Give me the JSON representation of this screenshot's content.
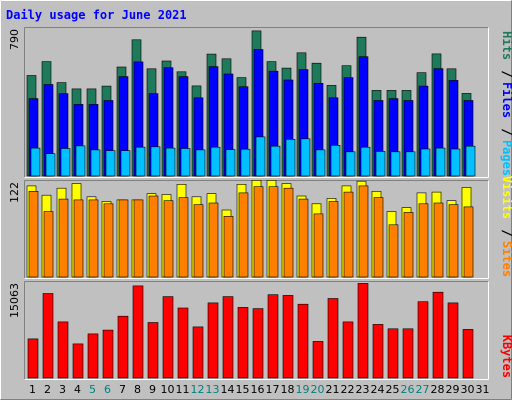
{
  "chart_data": {
    "type": "bar",
    "title": "Daily usage for June 2021",
    "days": [
      "1",
      "2",
      "3",
      "4",
      "5",
      "6",
      "7",
      "8",
      "9",
      "10",
      "11",
      "12",
      "13",
      "14",
      "15",
      "16",
      "17",
      "18",
      "19",
      "20",
      "21",
      "22",
      "23",
      "24",
      "25",
      "26",
      "27",
      "28",
      "29",
      "30",
      "31"
    ],
    "weekend_days": [
      "5",
      "6",
      "12",
      "13",
      "19",
      "20",
      "26",
      "27"
    ],
    "panels": [
      {
        "axis_max_label": "790",
        "ymax": 790,
        "right_labels": [
          "Pages",
          "Files",
          "Hits"
        ],
        "series": [
          {
            "name": "Hits",
            "color": "#1e7a5a",
            "values": [
              540,
              615,
              502,
              468,
              468,
              483,
              586,
              732,
              576,
              618,
              560,
              484,
              655,
              630,
              529,
              780,
              615,
              580,
              662,
              606,
              487,
              593,
              746,
              460,
              460,
              460,
              555,
              656,
              576,
              444,
              0
            ]
          },
          {
            "name": "Files",
            "color": "#0000ff",
            "values": [
              416,
              492,
              443,
              385,
              385,
              406,
              534,
              613,
              443,
              582,
              534,
              420,
              588,
              548,
              480,
              680,
              563,
              516,
              572,
              498,
              420,
              529,
              641,
              406,
              416,
              406,
              483,
              577,
              514,
              406,
              0
            ]
          },
          {
            "name": "Pages",
            "color": "#00c0ff",
            "values": [
              150,
              120,
              148,
              162,
              140,
              136,
              136,
              155,
              157,
              150,
              148,
              140,
              155,
              142,
              144,
              210,
              160,
              197,
              200,
              140,
              165,
              130,
              155,
              132,
              130,
              130,
              145,
              150,
              145,
              160,
              0
            ]
          }
        ]
      },
      {
        "axis_max_label": "122",
        "ymax": 122,
        "right_labels": [
          "Sites",
          "Visits"
        ],
        "series": [
          {
            "name": "Visits",
            "color": "#ffff00",
            "values": [
              117,
              105,
              114,
              120,
              103,
              97,
              99,
              99,
              107,
              106,
              119,
              103,
              107,
              86,
              119,
              124,
              124,
              120,
              104,
              94,
              101,
              117,
              123,
              110,
              84,
              89,
              108,
              109,
              98,
              115,
              0
            ]
          },
          {
            "name": "Sites",
            "color": "#ff8000",
            "values": [
              110,
              84,
              100,
              99,
              99,
              94,
              99,
              99,
              104,
              98,
              102,
              93,
              95,
              78,
              108,
              116,
              116,
              114,
              100,
              81,
              97,
              109,
              117,
              102,
              67,
              83,
              94,
              95,
              93,
              90,
              0
            ]
          }
        ]
      },
      {
        "axis_max_label": "15063",
        "ymax": 15063,
        "right_labels": [
          "KBytes"
        ],
        "series": [
          {
            "name": "KBytes",
            "color": "#ff0000",
            "values": [
              6200,
              13400,
              8900,
              5400,
              7000,
              7600,
              9800,
              14600,
              8800,
              12900,
              11100,
              8100,
              11900,
              12900,
              11200,
              11000,
              13200,
              13100,
              11700,
              5800,
              12600,
              8900,
              15000,
              8500,
              7800,
              7800,
              12100,
              13600,
              11900,
              7700,
              0
            ]
          }
        ]
      }
    ]
  }
}
